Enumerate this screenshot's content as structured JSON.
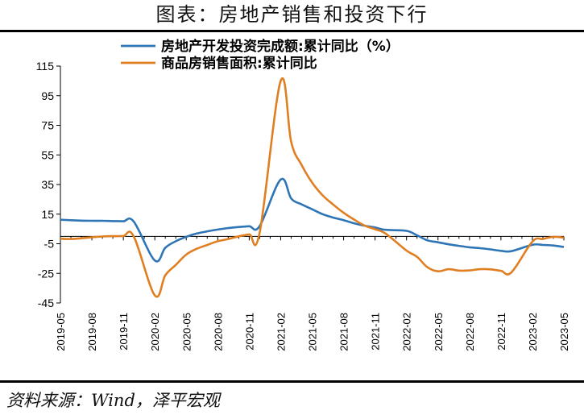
{
  "header": {
    "title": "图表：房地产销售和投资下行"
  },
  "footer": {
    "source": "资料来源：Wind，泽平宏观"
  },
  "chart_data": {
    "type": "line",
    "title": "图表：房地产销售和投资下行",
    "xlabel": "",
    "ylabel": "",
    "ylim": [
      -45,
      115
    ],
    "yticks": [
      115,
      95,
      75,
      55,
      35,
      15,
      -5,
      -25,
      -45
    ],
    "grid": false,
    "legend_position": "top-center",
    "x_tick_labels": [
      "2019-05",
      "2019-08",
      "2019-11",
      "2020-02",
      "2020-05",
      "2020-08",
      "2020-11",
      "2021-02",
      "2021-05",
      "2021-08",
      "2021-11",
      "2022-02",
      "2022-05",
      "2022-08",
      "2022-11",
      "2023-02",
      "2023-05"
    ],
    "x": [
      "2019-05",
      "2019-06",
      "2019-07",
      "2019-08",
      "2019-09",
      "2019-10",
      "2019-11",
      "2019-12",
      "2020-02",
      "2020-03",
      "2020-04",
      "2020-05",
      "2020-06",
      "2020-07",
      "2020-08",
      "2020-09",
      "2020-10",
      "2020-11",
      "2020-12",
      "2021-02",
      "2021-03",
      "2021-04",
      "2021-05",
      "2021-06",
      "2021-07",
      "2021-08",
      "2021-09",
      "2021-10",
      "2021-11",
      "2021-12",
      "2022-02",
      "2022-03",
      "2022-04",
      "2022-05",
      "2022-06",
      "2022-07",
      "2022-08",
      "2022-09",
      "2022-10",
      "2022-11",
      "2022-12",
      "2023-02",
      "2023-03",
      "2023-04",
      "2023-05"
    ],
    "series": [
      {
        "name": "房地产开发投资完成额:累计同比（%）",
        "color": "#2E75B6",
        "values": [
          11.2,
          10.9,
          10.6,
          10.5,
          10.5,
          10.3,
          10.2,
          9.9,
          -16.3,
          -7.7,
          -3.3,
          -0.3,
          1.9,
          3.4,
          4.6,
          5.6,
          6.3,
          6.8,
          7.0,
          38.3,
          25.6,
          21.6,
          18.3,
          15.0,
          12.7,
          10.9,
          8.8,
          7.2,
          6.0,
          4.4,
          3.7,
          0.7,
          -2.7,
          -4.0,
          -5.4,
          -6.4,
          -7.4,
          -8.0,
          -8.8,
          -9.8,
          -10.0,
          -5.7,
          -5.8,
          -6.2,
          -7.2
        ]
      },
      {
        "name": "商品房销售面积:累计同比",
        "color": "#E07E22",
        "values": [
          -1.6,
          -1.8,
          -1.3,
          -0.6,
          -0.1,
          0.1,
          0.2,
          -0.1,
          -39.9,
          -26.3,
          -19.3,
          -12.3,
          -8.4,
          -5.8,
          -3.3,
          -1.8,
          0.0,
          1.3,
          2.6,
          104.9,
          63.8,
          48.1,
          36.3,
          27.7,
          21.5,
          15.9,
          11.3,
          7.3,
          4.8,
          1.9,
          -9.6,
          -13.8,
          -20.9,
          -23.6,
          -22.2,
          -23.1,
          -23.0,
          -22.2,
          -22.3,
          -23.3,
          -24.3,
          -3.6,
          -1.8,
          -0.4,
          -0.9
        ]
      }
    ]
  }
}
